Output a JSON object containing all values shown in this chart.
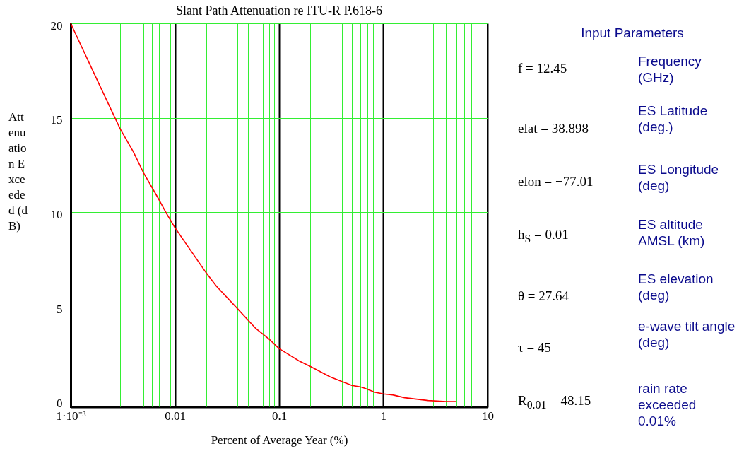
{
  "chart_data": {
    "type": "line",
    "title": "Slant Path Attenuation re ITU-R P.618-6",
    "xlabel": "Percent of Average Year (%)",
    "ylabel": "Attenuation Exceeded (dB)",
    "x": [
      0.001,
      0.002,
      0.003,
      0.004,
      0.005,
      0.007,
      0.0082,
      0.01,
      0.02,
      0.025,
      0.04,
      0.06,
      0.08,
      0.1,
      0.155,
      0.2,
      0.31,
      0.5,
      0.63,
      0.82,
      1.0,
      1.23,
      1.6,
      2.7,
      4.0,
      5.0
    ],
    "series": [
      {
        "color": "#ff0000",
        "values": [
          20.0,
          16.45,
          14.4,
          13.2,
          12.1,
          10.7,
          10.0,
          9.2,
          6.8,
          6.1,
          4.9,
          3.85,
          3.3,
          2.8,
          2.15,
          1.85,
          1.3,
          0.85,
          0.75,
          0.5,
          0.4,
          0.35,
          0.2,
          0.05,
          0.0,
          0.0
        ]
      }
    ],
    "log": "x",
    "grid": true,
    "xlim": [
      0.001,
      10
    ],
    "xticks": [
      {
        "value": 0.001,
        "label": "1·10⁻³"
      },
      {
        "value": 0.002,
        "label": null
      },
      {
        "value": 0.003,
        "label": null
      },
      {
        "value": 0.004,
        "label": null
      },
      {
        "value": 0.005,
        "label": null
      },
      {
        "value": 0.006,
        "label": null
      },
      {
        "value": 0.007,
        "label": null
      },
      {
        "value": 0.008,
        "label": null
      },
      {
        "value": 0.009,
        "label": null
      },
      0.01,
      {
        "value": 0.02,
        "label": null
      },
      {
        "value": 0.03,
        "label": null
      },
      {
        "value": 0.04,
        "label": null
      },
      {
        "value": 0.05,
        "label": null
      },
      {
        "value": 0.06,
        "label": null
      },
      {
        "value": 0.07,
        "label": null
      },
      {
        "value": 0.08,
        "label": null
      },
      {
        "value": 0.09,
        "label": null
      },
      0.1,
      {
        "value": 0.2,
        "label": null
      },
      {
        "value": 0.3,
        "label": null
      },
      {
        "value": 0.4,
        "label": null
      },
      {
        "value": 0.5,
        "label": null
      },
      {
        "value": 0.6,
        "label": null
      },
      {
        "value": 0.7,
        "label": null
      },
      {
        "value": 0.8,
        "label": null
      },
      {
        "value": 0.9,
        "label": null
      },
      1,
      {
        "value": 2,
        "label": null
      },
      {
        "value": 3,
        "label": null
      },
      {
        "value": 4,
        "label": null
      },
      {
        "value": 5,
        "label": null
      },
      {
        "value": 6,
        "label": null
      },
      {
        "value": 7,
        "label": null
      },
      {
        "value": 8,
        "label": null
      },
      {
        "value": 9,
        "label": null
      },
      10
    ],
    "ylim": [
      -0.3,
      20
    ],
    "yticks": [
      0,
      5,
      10,
      15,
      20
    ],
    "annotations": [
      "Input Parameters",
      "f = 12.45",
      "Frequency (GHz)",
      "elat = 38.898",
      "ES Latitude (deg.)",
      "elon = −77.01",
      "ES Longitude (deg)",
      "h$_{S}$ = 0.01",
      "ES altitude AMSL (km)",
      "θ = 27.64",
      "ES elevation (deg)",
      "τ = 45",
      "e-wave tilt angle (deg)",
      "R$_{0.01}$ = 48.15",
      "rain rate exceeded 0.01%"
    ]
  }
}
